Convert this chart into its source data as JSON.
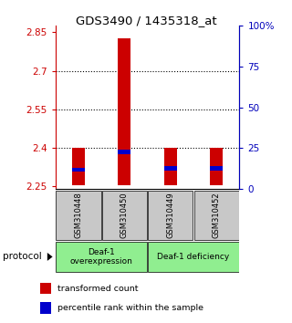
{
  "title": "GDS3490 / 1435318_at",
  "samples": [
    "GSM310448",
    "GSM310450",
    "GSM310449",
    "GSM310452"
  ],
  "red_bar_bottoms": [
    2.255,
    2.255,
    2.255,
    2.255
  ],
  "red_bar_tops": [
    2.4,
    2.828,
    2.4,
    2.4
  ],
  "blue_bar_centers": [
    2.315,
    2.385,
    2.32,
    2.32
  ],
  "blue_bar_height": 0.016,
  "ylim": [
    2.24,
    2.875
  ],
  "yticks_left": [
    2.25,
    2.4,
    2.55,
    2.7,
    2.85
  ],
  "yticks_right": [
    0,
    25,
    50,
    75,
    100
  ],
  "yticks_right_labels": [
    "0",
    "25",
    "50",
    "75",
    "100%"
  ],
  "gridlines": [
    2.4,
    2.55,
    2.7
  ],
  "group1_label": "Deaf-1\noverexpression",
  "group2_label": "Deaf-1 deficiency",
  "group_bg_color": "#90ee90",
  "sample_bg_color": "#c8c8c8",
  "bar_width": 0.28,
  "red_color": "#cc0000",
  "blue_color": "#0000cc",
  "left_tick_color": "#cc0000",
  "right_tick_color": "#0000bb"
}
